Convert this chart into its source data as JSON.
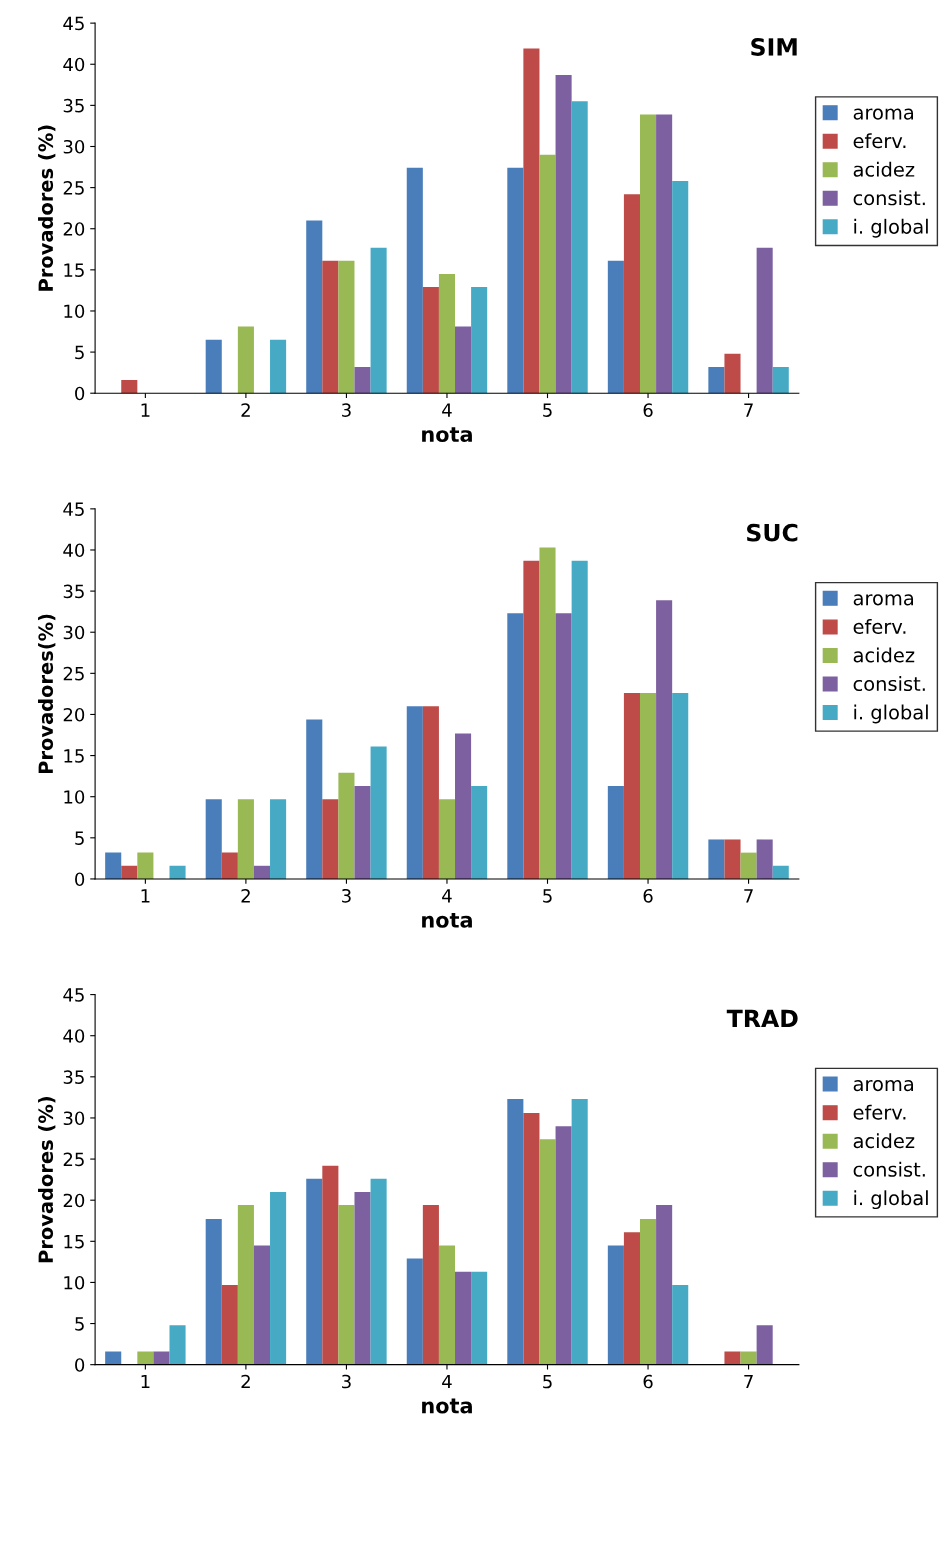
{
  "chart_data": [
    {
      "type": "bar",
      "title": "SIM",
      "xlabel": "nota",
      "ylabel": "Provadores (%)",
      "categories": [
        "1",
        "2",
        "3",
        "4",
        "5",
        "6",
        "7"
      ],
      "ylim": [
        0,
        45
      ],
      "yticks": [
        0,
        5,
        10,
        15,
        20,
        25,
        30,
        35,
        40,
        45
      ],
      "grid": false,
      "legend": "right",
      "series": [
        {
          "name": "aroma",
          "color": "#4a7ebb",
          "values": [
            0,
            6.5,
            21.0,
            27.4,
            27.4,
            16.1,
            3.2
          ]
        },
        {
          "name": "eferv.",
          "color": "#be4b48",
          "values": [
            1.6,
            0,
            16.1,
            12.9,
            41.9,
            24.2,
            4.8
          ]
        },
        {
          "name": "acidez",
          "color": "#98b954",
          "values": [
            0,
            8.1,
            16.1,
            14.5,
            29.0,
            33.9,
            0
          ]
        },
        {
          "name": "consist.",
          "color": "#7d60a0",
          "values": [
            0,
            0,
            3.2,
            8.1,
            38.7,
            33.9,
            17.7
          ]
        },
        {
          "name": "i. global",
          "color": "#46aac5",
          "values": [
            0,
            6.5,
            17.7,
            12.9,
            35.5,
            25.8,
            3.2
          ]
        }
      ]
    },
    {
      "type": "bar",
      "title": "SUC",
      "xlabel": "nota",
      "ylabel": "Provadores(%)",
      "categories": [
        "1",
        "2",
        "3",
        "4",
        "5",
        "6",
        "7"
      ],
      "ylim": [
        0,
        45
      ],
      "yticks": [
        0,
        5,
        10,
        15,
        20,
        25,
        30,
        35,
        40,
        45
      ],
      "grid": false,
      "legend": "right",
      "series": [
        {
          "name": "aroma",
          "color": "#4a7ebb",
          "values": [
            3.2,
            9.7,
            19.4,
            21.0,
            32.3,
            11.3,
            4.8
          ]
        },
        {
          "name": "eferv.",
          "color": "#be4b48",
          "values": [
            1.6,
            3.2,
            9.7,
            21.0,
            38.7,
            22.6,
            4.8
          ]
        },
        {
          "name": "acidez",
          "color": "#98b954",
          "values": [
            3.2,
            9.7,
            12.9,
            9.7,
            40.3,
            22.6,
            3.2
          ]
        },
        {
          "name": "consist.",
          "color": "#7d60a0",
          "values": [
            0,
            1.6,
            11.3,
            17.7,
            32.3,
            33.9,
            4.8
          ]
        },
        {
          "name": "i. global",
          "color": "#46aac5",
          "values": [
            1.6,
            9.7,
            16.1,
            11.3,
            38.7,
            22.6,
            1.6
          ]
        }
      ]
    },
    {
      "type": "bar",
      "title": "TRAD",
      "xlabel": "nota",
      "ylabel": "Provadores (%)",
      "categories": [
        "1",
        "2",
        "3",
        "4",
        "5",
        "6",
        "7"
      ],
      "ylim": [
        0,
        45
      ],
      "yticks": [
        0,
        5,
        10,
        15,
        20,
        25,
        30,
        35,
        40,
        45
      ],
      "grid": false,
      "legend": "right",
      "series": [
        {
          "name": "aroma",
          "color": "#4a7ebb",
          "values": [
            1.6,
            17.7,
            22.6,
            12.9,
            32.3,
            14.5,
            0
          ]
        },
        {
          "name": "eferv.",
          "color": "#be4b48",
          "values": [
            0,
            9.7,
            24.2,
            19.4,
            30.6,
            16.1,
            1.6
          ]
        },
        {
          "name": "acidez",
          "color": "#98b954",
          "values": [
            1.6,
            19.4,
            19.4,
            14.5,
            27.4,
            17.7,
            1.6
          ]
        },
        {
          "name": "consist.",
          "color": "#7d60a0",
          "values": [
            1.6,
            14.5,
            21.0,
            11.3,
            29.0,
            19.4,
            4.8
          ]
        },
        {
          "name": "i. global",
          "color": "#46aac5",
          "values": [
            4.8,
            21.0,
            22.6,
            11.3,
            32.3,
            9.7,
            0
          ]
        }
      ]
    }
  ]
}
